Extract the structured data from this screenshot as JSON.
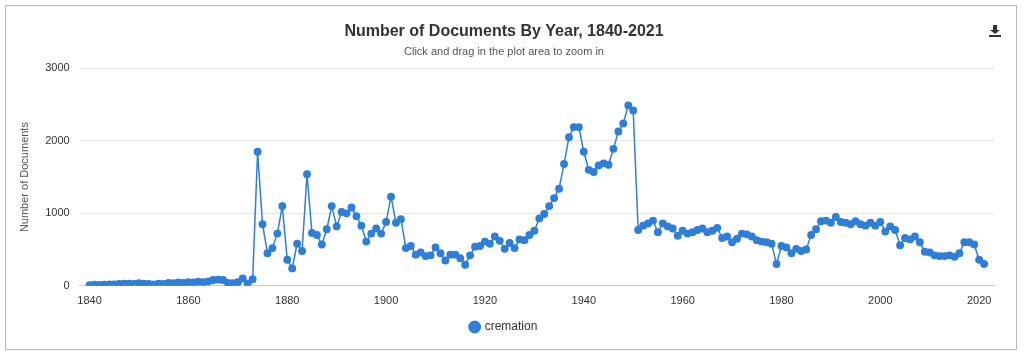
{
  "chart_data": {
    "type": "line",
    "title": "Number of Documents By Year, 1840-2021",
    "subtitle": "Click and drag in the plot area to zoom in",
    "ylabel": "Number of Documents",
    "x": [
      1840,
      1841,
      1842,
      1843,
      1844,
      1845,
      1846,
      1847,
      1848,
      1849,
      1850,
      1851,
      1852,
      1853,
      1854,
      1855,
      1856,
      1857,
      1858,
      1859,
      1860,
      1861,
      1862,
      1863,
      1864,
      1865,
      1866,
      1867,
      1868,
      1869,
      1870,
      1871,
      1872,
      1873,
      1874,
      1875,
      1876,
      1877,
      1878,
      1879,
      1880,
      1881,
      1882,
      1883,
      1884,
      1885,
      1886,
      1887,
      1888,
      1889,
      1890,
      1891,
      1892,
      1893,
      1894,
      1895,
      1896,
      1897,
      1898,
      1899,
      1900,
      1901,
      1902,
      1903,
      1904,
      1905,
      1906,
      1907,
      1908,
      1909,
      1910,
      1911,
      1912,
      1913,
      1914,
      1915,
      1916,
      1917,
      1918,
      1919,
      1920,
      1921,
      1922,
      1923,
      1924,
      1925,
      1926,
      1927,
      1928,
      1929,
      1930,
      1931,
      1932,
      1933,
      1934,
      1935,
      1936,
      1937,
      1938,
      1939,
      1940,
      1941,
      1942,
      1943,
      1944,
      1945,
      1946,
      1947,
      1948,
      1949,
      1950,
      1951,
      1952,
      1953,
      1954,
      1955,
      1956,
      1957,
      1958,
      1959,
      1960,
      1961,
      1962,
      1963,
      1964,
      1965,
      1966,
      1967,
      1968,
      1969,
      1970,
      1971,
      1972,
      1973,
      1974,
      1975,
      1976,
      1977,
      1978,
      1979,
      1980,
      1981,
      1982,
      1983,
      1984,
      1985,
      1986,
      1987,
      1988,
      1989,
      1990,
      1991,
      1992,
      1993,
      1994,
      1995,
      1996,
      1997,
      1998,
      1999,
      2000,
      2001,
      2002,
      2003,
      2004,
      2005,
      2006,
      2007,
      2008,
      2009,
      2010,
      2011,
      2012,
      2013,
      2014,
      2015,
      2016,
      2017,
      2018,
      2019,
      2020,
      2021
    ],
    "series": [
      {
        "name": "cremation",
        "color": "#2f7ed8",
        "values": [
          10,
          15,
          12,
          15,
          20,
          18,
          25,
          30,
          28,
          25,
          35,
          30,
          25,
          20,
          30,
          25,
          40,
          35,
          45,
          40,
          50,
          45,
          55,
          50,
          60,
          80,
          85,
          80,
          40,
          35,
          50,
          100,
          30,
          90,
          1850,
          850,
          450,
          520,
          720,
          1100,
          360,
          240,
          580,
          480,
          1540,
          730,
          700,
          570,
          780,
          1100,
          820,
          1020,
          1000,
          1080,
          960,
          830,
          610,
          720,
          790,
          720,
          880,
          1230,
          870,
          920,
          520,
          550,
          430,
          460,
          410,
          420,
          530,
          450,
          350,
          430,
          430,
          380,
          290,
          420,
          540,
          550,
          610,
          580,
          680,
          620,
          510,
          590,
          520,
          640,
          630,
          700,
          760,
          930,
          990,
          1100,
          1210,
          1340,
          1680,
          2050,
          2190,
          2190,
          1850,
          1600,
          1570,
          1660,
          1690,
          1670,
          1890,
          2130,
          2240,
          2490,
          2420,
          770,
          830,
          860,
          900,
          740,
          860,
          820,
          790,
          690,
          760,
          720,
          740,
          770,
          790,
          740,
          760,
          800,
          660,
          680,
          600,
          650,
          720,
          710,
          680,
          630,
          610,
          600,
          580,
          300,
          550,
          530,
          450,
          510,
          480,
          500,
          700,
          780,
          890,
          900,
          870,
          950,
          880,
          870,
          850,
          890,
          850,
          830,
          870,
          830,
          880,
          750,
          820,
          770,
          560,
          660,
          640,
          680,
          600,
          470,
          460,
          420,
          410,
          410,
          420,
          400,
          450,
          600,
          600,
          570,
          360,
          300
        ]
      }
    ],
    "xlim": [
      1838,
      2023
    ],
    "xticks": [
      1840,
      1860,
      1880,
      1900,
      1920,
      1940,
      1960,
      1980,
      2000,
      2020
    ],
    "ylim": [
      0,
      3000
    ],
    "yticks": [
      0,
      1000,
      2000,
      3000
    ],
    "grid": true,
    "legend": "bottom",
    "marker": "circle",
    "line_style": "solid"
  }
}
